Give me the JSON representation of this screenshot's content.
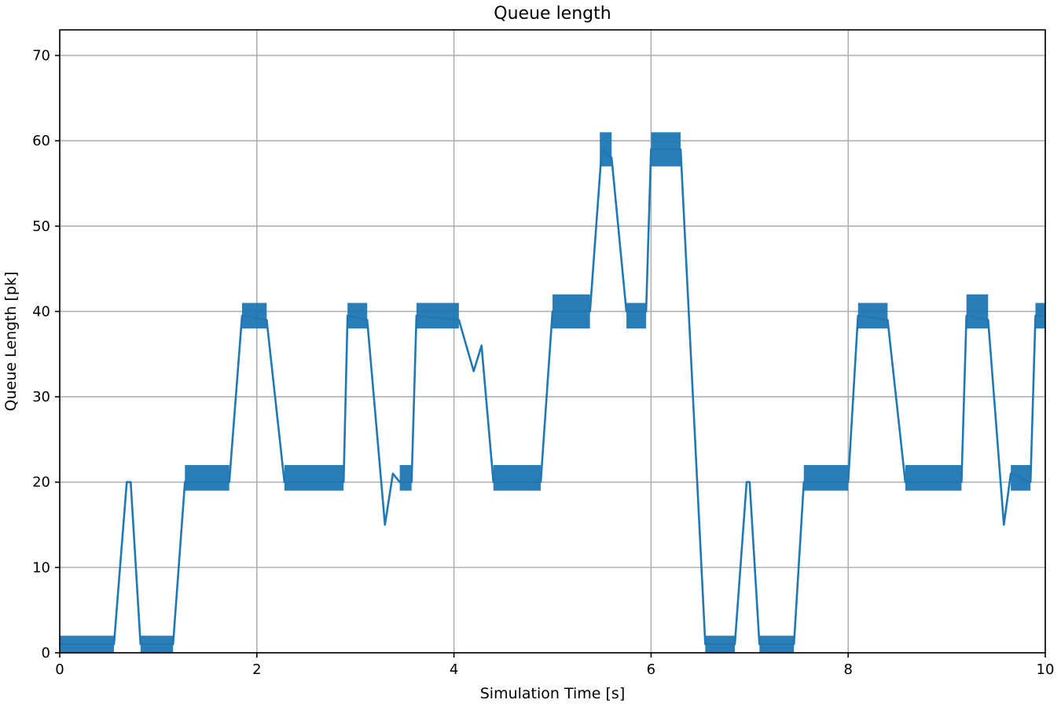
{
  "chart_data": {
    "type": "scatter",
    "title": "Queue length",
    "xlabel": "Simulation Time [s]",
    "ylabel": "Queue Length [pk]",
    "xlim": [
      0,
      10
    ],
    "ylim": [
      0,
      73
    ],
    "xticks": [
      0,
      2,
      4,
      6,
      8,
      10
    ],
    "yticks": [
      0,
      10,
      20,
      30,
      40,
      50,
      60,
      70
    ],
    "grid": true,
    "series_color": "#1f77b4",
    "series": [
      {
        "profile_points": [
          [
            0,
            1
          ],
          [
            0.55,
            1
          ],
          [
            0.68,
            20
          ],
          [
            0.72,
            20
          ],
          [
            0.82,
            1
          ],
          [
            1.15,
            1
          ],
          [
            1.27,
            20
          ],
          [
            1.72,
            20
          ],
          [
            1.85,
            39.5
          ],
          [
            2.1,
            39
          ],
          [
            2.28,
            20
          ],
          [
            2.88,
            20
          ],
          [
            2.92,
            39.5
          ],
          [
            3.12,
            39
          ],
          [
            3.3,
            15
          ],
          [
            3.38,
            21
          ],
          [
            3.45,
            20
          ],
          [
            3.57,
            20
          ],
          [
            3.62,
            39.5
          ],
          [
            4.05,
            39
          ],
          [
            4.2,
            33
          ],
          [
            4.28,
            36
          ],
          [
            4.4,
            20
          ],
          [
            4.88,
            20
          ],
          [
            5.0,
            40
          ],
          [
            5.38,
            40
          ],
          [
            5.5,
            59
          ],
          [
            5.6,
            58
          ],
          [
            5.75,
            40
          ],
          [
            5.95,
            40
          ],
          [
            6.0,
            59
          ],
          [
            6.3,
            59
          ],
          [
            6.55,
            1
          ],
          [
            6.85,
            1
          ],
          [
            6.97,
            20
          ],
          [
            7.0,
            20
          ],
          [
            7.1,
            1
          ],
          [
            7.45,
            1
          ],
          [
            7.55,
            20
          ],
          [
            8.0,
            20
          ],
          [
            8.1,
            39.5
          ],
          [
            8.4,
            39
          ],
          [
            8.58,
            20
          ],
          [
            9.15,
            20
          ],
          [
            9.2,
            39.5
          ],
          [
            9.42,
            39
          ],
          [
            9.58,
            15
          ],
          [
            9.65,
            21
          ],
          [
            9.85,
            20
          ],
          [
            9.9,
            39.5
          ],
          [
            10.0,
            39.5
          ]
        ],
        "plateau_bands": [
          [
            0,
            0.55,
            0,
            2
          ],
          [
            0.82,
            1.15,
            0,
            2
          ],
          [
            1.27,
            1.72,
            19,
            22
          ],
          [
            1.85,
            2.1,
            38,
            41
          ],
          [
            2.28,
            2.88,
            19,
            22
          ],
          [
            2.92,
            3.12,
            38,
            41
          ],
          [
            3.45,
            3.57,
            19,
            22
          ],
          [
            3.62,
            4.05,
            38,
            41
          ],
          [
            4.4,
            4.88,
            19,
            22
          ],
          [
            5.0,
            5.38,
            38,
            42
          ],
          [
            5.48,
            5.6,
            57,
            61
          ],
          [
            5.75,
            5.95,
            38,
            41
          ],
          [
            6.0,
            6.3,
            57,
            61
          ],
          [
            6.55,
            6.85,
            0,
            2
          ],
          [
            7.1,
            7.45,
            0,
            2
          ],
          [
            7.55,
            8.0,
            19,
            22
          ],
          [
            8.1,
            8.4,
            38,
            41
          ],
          [
            8.58,
            9.15,
            19,
            22
          ],
          [
            9.2,
            9.42,
            38,
            42
          ],
          [
            9.65,
            9.85,
            19,
            22
          ],
          [
            9.9,
            10.0,
            38,
            41
          ]
        ]
      }
    ]
  }
}
